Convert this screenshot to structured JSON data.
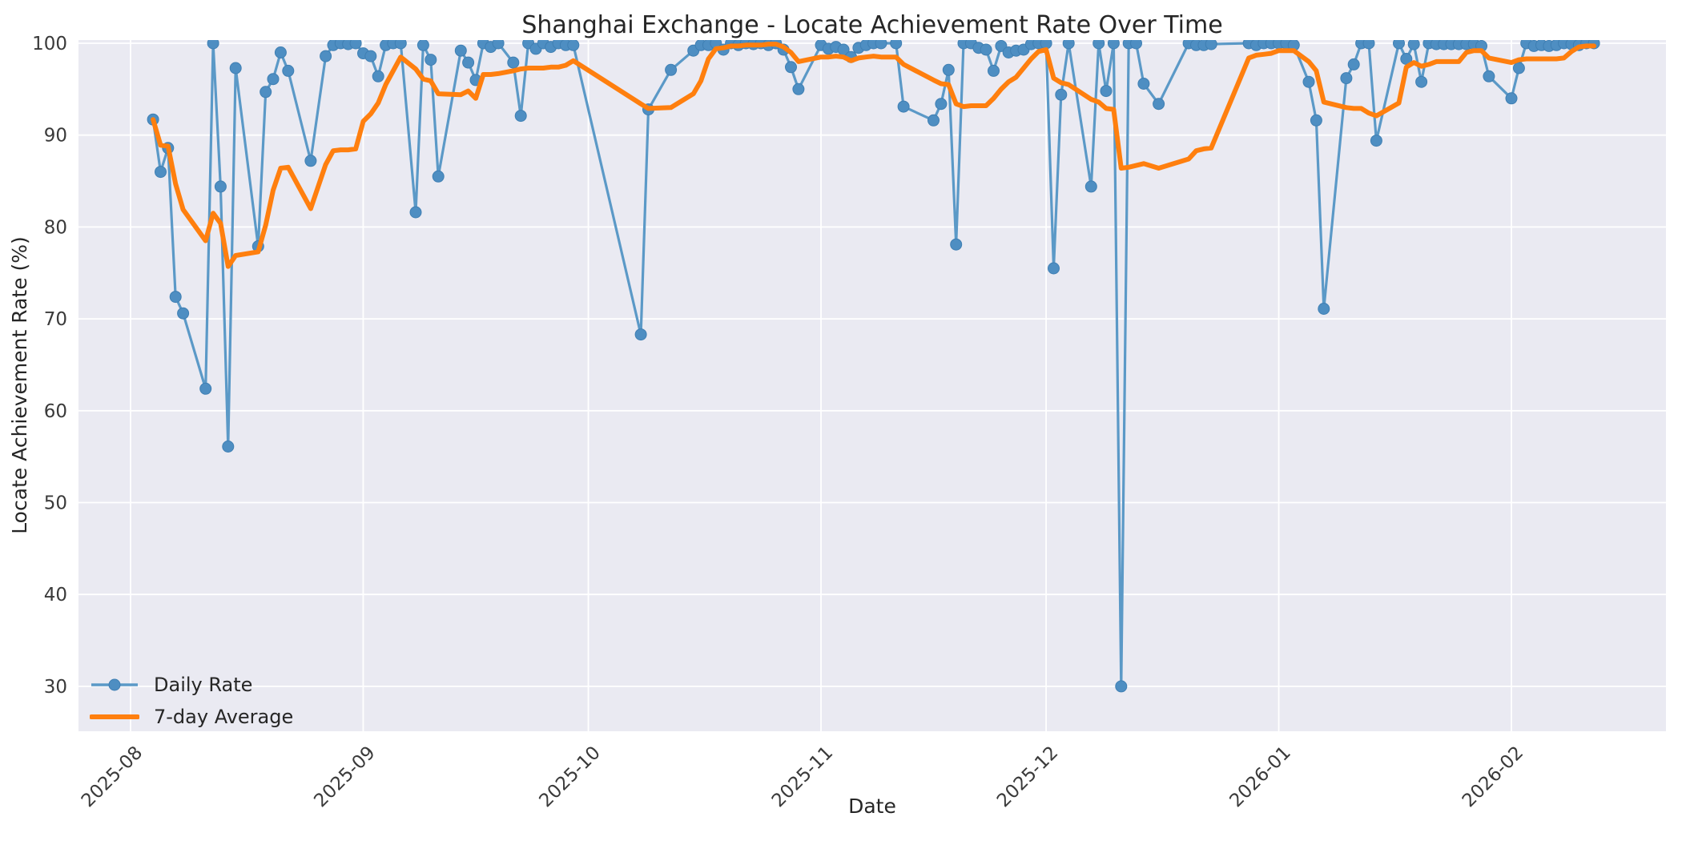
{
  "chart_data": {
    "type": "line",
    "title": "Shanghai Exchange - Locate Achievement Rate Over Time",
    "xlabel": "Date",
    "ylabel": "Locate Achievement Rate (%)",
    "legend_position": "lower left",
    "grid": true,
    "plot_bg_color": "#eaeaf2",
    "grid_color": "#ffffff",
    "text_color": "#262626",
    "ylim": [
      25,
      100.5
    ],
    "y_ticks": [
      30,
      40,
      50,
      60,
      70,
      80,
      90,
      100
    ],
    "x_tick_labels": [
      "2025-08",
      "2025-09",
      "2025-10",
      "2025-11",
      "2025-12",
      "2026-01",
      "2026-02"
    ],
    "dates": [
      "2025-08-04",
      "2025-08-05",
      "2025-08-06",
      "2025-08-07",
      "2025-08-08",
      "2025-08-11",
      "2025-08-12",
      "2025-08-13",
      "2025-08-14",
      "2025-08-15",
      "2025-08-18",
      "2025-08-19",
      "2025-08-20",
      "2025-08-21",
      "2025-08-22",
      "2025-08-25",
      "2025-08-27",
      "2025-08-28",
      "2025-08-29",
      "2025-08-30",
      "2025-08-31",
      "2025-09-01",
      "2025-09-02",
      "2025-09-03",
      "2025-09-04",
      "2025-09-05",
      "2025-09-06",
      "2025-09-08",
      "2025-09-09",
      "2025-09-10",
      "2025-09-11",
      "2025-09-14",
      "2025-09-15",
      "2025-09-16",
      "2025-09-17",
      "2025-09-18",
      "2025-09-19",
      "2025-09-21",
      "2025-09-22",
      "2025-09-23",
      "2025-09-24",
      "2025-09-25",
      "2025-09-26",
      "2025-09-27",
      "2025-09-28",
      "2025-09-29",
      "2025-10-08",
      "2025-10-09",
      "2025-10-12",
      "2025-10-15",
      "2025-10-16",
      "2025-10-17",
      "2025-10-18",
      "2025-10-19",
      "2025-10-20",
      "2025-10-21",
      "2025-10-22",
      "2025-10-23",
      "2025-10-24",
      "2025-10-25",
      "2025-10-26",
      "2025-10-27",
      "2025-10-28",
      "2025-10-29",
      "2025-11-01",
      "2025-11-02",
      "2025-11-03",
      "2025-11-04",
      "2025-11-05",
      "2025-11-06",
      "2025-11-07",
      "2025-11-08",
      "2025-11-09",
      "2025-11-11",
      "2025-11-12",
      "2025-11-16",
      "2025-11-17",
      "2025-11-18",
      "2025-11-19",
      "2025-11-20",
      "2025-11-21",
      "2025-11-22",
      "2025-11-23",
      "2025-11-24",
      "2025-11-25",
      "2025-11-26",
      "2025-11-27",
      "2025-11-28",
      "2025-11-29",
      "2025-11-30",
      "2025-12-01",
      "2025-12-02",
      "2025-12-03",
      "2025-12-04",
      "2025-12-07",
      "2025-12-08",
      "2025-12-09",
      "2025-12-10",
      "2025-12-11",
      "2025-12-12",
      "2025-12-13",
      "2025-12-14",
      "2025-12-16",
      "2025-12-20",
      "2025-12-21",
      "2025-12-22",
      "2025-12-23",
      "2025-12-28",
      "2025-12-29",
      "2025-12-30",
      "2025-12-31",
      "2026-01-01",
      "2026-01-02",
      "2026-01-03",
      "2026-01-05",
      "2026-01-06",
      "2026-01-07",
      "2026-01-10",
      "2026-01-11",
      "2026-01-12",
      "2026-01-13",
      "2026-01-14",
      "2026-01-17",
      "2026-01-18",
      "2026-01-19",
      "2026-01-20",
      "2026-01-21",
      "2026-01-22",
      "2026-01-23",
      "2026-01-24",
      "2026-01-25",
      "2026-01-26",
      "2026-01-27",
      "2026-01-28",
      "2026-01-29",
      "2026-02-01",
      "2026-02-02",
      "2026-02-03",
      "2026-02-04",
      "2026-02-05",
      "2026-02-06",
      "2026-02-07",
      "2026-02-08",
      "2026-02-09",
      "2026-02-10",
      "2026-02-11",
      "2026-02-12"
    ],
    "series": [
      {
        "name": "Daily Rate",
        "color": "#5b99c7",
        "marker": "circle",
        "line_width": 3.2,
        "values": [
          91.7,
          86.0,
          88.6,
          72.4,
          70.6,
          62.4,
          100,
          84.4,
          56.1,
          97.3,
          77.9,
          94.7,
          96.1,
          99.0,
          97.0,
          87.2,
          98.6,
          99.8,
          100,
          99.9,
          100,
          98.9,
          98.6,
          96.4,
          99.8,
          100,
          100,
          81.6,
          99.8,
          98.2,
          85.5,
          99.2,
          97.9,
          96.0,
          100,
          99.6,
          100,
          97.9,
          92.1,
          100,
          99.4,
          100,
          99.6,
          100,
          99.8,
          99.8,
          68.3,
          92.8,
          97.1,
          99.2,
          99.8,
          99.8,
          100,
          99.3,
          100,
          99.8,
          100,
          99.9,
          100,
          99.8,
          100,
          99.3,
          97.4,
          95.0,
          99.8,
          99.4,
          99.6,
          99.3,
          98.5,
          99.5,
          99.8,
          100,
          100,
          100,
          93.1,
          91.6,
          93.4,
          97.1,
          78.1,
          100,
          100,
          99.5,
          99.3,
          97.0,
          99.7,
          99.0,
          99.2,
          99.3,
          99.9,
          100,
          100,
          75.5,
          94.4,
          100,
          84.4,
          100,
          94.8,
          100,
          30.0,
          100,
          100,
          95.6,
          93.4,
          100,
          99.8,
          99.8,
          99.9,
          100,
          99.8,
          100,
          100,
          100,
          100,
          99.8,
          95.8,
          91.6,
          71.1,
          96.2,
          97.7,
          100,
          100,
          89.4,
          100,
          98.3,
          99.9,
          95.8,
          100,
          99.9,
          99.9,
          99.9,
          99.9,
          99.9,
          99.9,
          99.7,
          96.4,
          94.0,
          97.3,
          100,
          99.7,
          99.8,
          99.7,
          99.8,
          100,
          99.9,
          99.8,
          100,
          100
        ]
      },
      {
        "name": "7-day Average",
        "color": "#ff7f0e",
        "marker": "none",
        "line_width": 6,
        "values": [
          91.7,
          88.9,
          88.8,
          84.7,
          81.9,
          78.5,
          81.5,
          80.4,
          75.7,
          76.9,
          77.3,
          80.2,
          84.0,
          86.4,
          86.5,
          82.0,
          86.8,
          88.3,
          88.4,
          88.4,
          88.5,
          91.5,
          92.3,
          93.5,
          95.5,
          97.0,
          98.5,
          97.2,
          96.1,
          95.9,
          94.5,
          94.4,
          94.8,
          94.0,
          96.6,
          96.6,
          96.7,
          97.0,
          97.2,
          97.3,
          97.3,
          97.3,
          97.4,
          97.4,
          97.6,
          98.1,
          93.4,
          92.9,
          93.0,
          94.5,
          95.9,
          98.3,
          99.4,
          99.5,
          99.7,
          99.7,
          99.8,
          99.8,
          99.8,
          99.9,
          99.9,
          99.6,
          99.0,
          98.0,
          98.5,
          98.5,
          98.6,
          98.5,
          98.1,
          98.4,
          98.5,
          98.6,
          98.5,
          98.5,
          97.7,
          96.0,
          95.6,
          95.5,
          93.4,
          93.1,
          93.2,
          93.2,
          93.2,
          94.0,
          95.0,
          95.8,
          96.3,
          97.3,
          98.3,
          99.1,
          99.3,
          96.2,
          95.7,
          95.5,
          93.9,
          93.6,
          92.9,
          92.8,
          86.4,
          86.5,
          86.7,
          86.9,
          86.4,
          87.4,
          88.3,
          88.5,
          88.6,
          98.4,
          98.7,
          98.8,
          98.9,
          99.2,
          99.2,
          99.2,
          98.0,
          97.0,
          93.6,
          93.0,
          92.9,
          92.9,
          92.4,
          92.1,
          93.5,
          97.4,
          97.9,
          97.5,
          97.7,
          98.0,
          98.0,
          98.0,
          98.0,
          99.0,
          99.2,
          99.2,
          98.4,
          97.9,
          98.2,
          98.3,
          98.3,
          98.3,
          98.3,
          98.3,
          98.4,
          99.1,
          99.6,
          99.7,
          99.7
        ]
      }
    ]
  }
}
